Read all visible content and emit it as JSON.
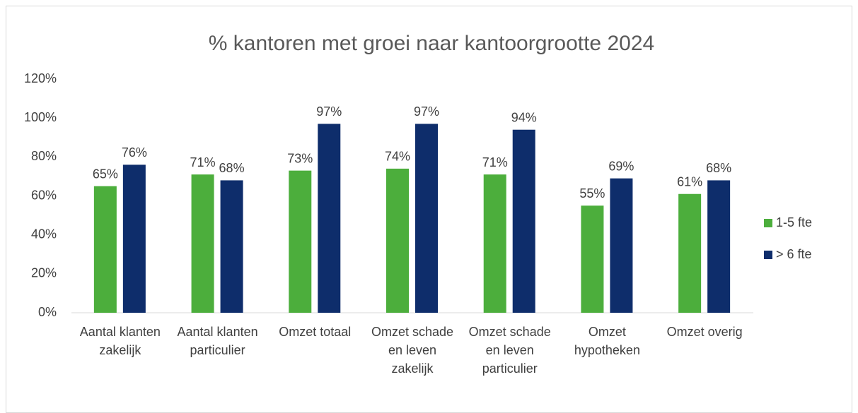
{
  "chart_data": {
    "type": "bar",
    "title": "% kantoren met groei naar kantoorgrootte 2024",
    "categories": [
      "Aantal klanten zakelijk",
      "Aantal klanten particulier",
      "Omzet totaal",
      "Omzet schade en leven zakelijk",
      "Omzet schade en leven particulier",
      "Omzet hypotheken",
      "Omzet overig"
    ],
    "series": [
      {
        "name": "1-5 fte",
        "color": "#4cae3c",
        "values": [
          65,
          71,
          73,
          74,
          71,
          55,
          61
        ],
        "value_labels": [
          "65%",
          "71%",
          "73%",
          "74%",
          "71%",
          "55%",
          "61%"
        ]
      },
      {
        "name": "> 6 fte",
        "color": "#0e2d6b",
        "values": [
          76,
          68,
          97,
          97,
          94,
          69,
          68
        ],
        "value_labels": [
          "76%",
          "68%",
          "97%",
          "97%",
          "94%",
          "69%",
          "68%"
        ]
      }
    ],
    "ylim": [
      0,
      120
    ],
    "yticks": [
      {
        "value": 0,
        "label": "0%"
      },
      {
        "value": 20,
        "label": "20%"
      },
      {
        "value": 40,
        "label": "40%"
      },
      {
        "value": 60,
        "label": "60%"
      },
      {
        "value": 80,
        "label": "80%"
      },
      {
        "value": 100,
        "label": "100%"
      },
      {
        "value": 120,
        "label": "120%"
      }
    ],
    "legend": "right",
    "grid": false
  }
}
